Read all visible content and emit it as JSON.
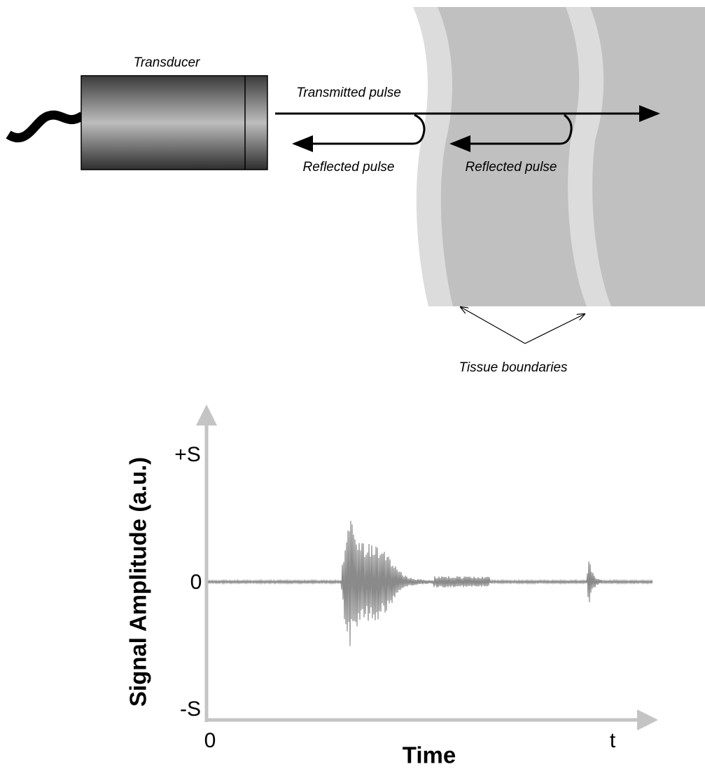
{
  "diagram": {
    "transducer": "Transducer",
    "transmitted": "Transmitted pulse",
    "reflected_1": "Reflected pulse",
    "reflected_2": "Reflected pulse",
    "boundaries": "Tissue boundaries"
  },
  "plot": {
    "y_label": "Signal Amplitude  (a.u.)",
    "x_label": "Time",
    "y_top": "+S",
    "y_zero": "0",
    "y_bottom": "-S",
    "x_zero": "0",
    "x_end": "t"
  }
}
